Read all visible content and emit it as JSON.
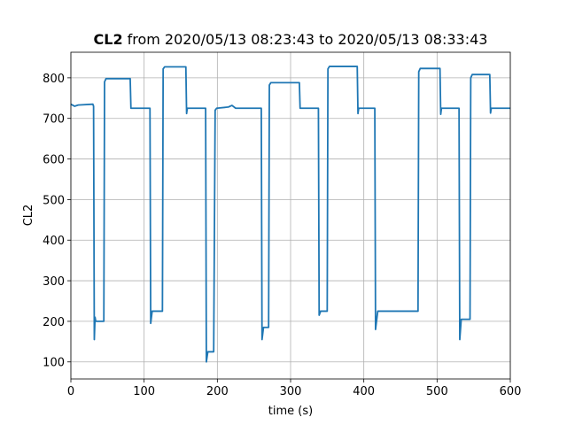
{
  "chart_data": {
    "type": "line",
    "title_bold": "CL2",
    "title": "from 2020/05/13 08:23:43 to 2020/05/13 08:33:43",
    "xlabel": "time (s)",
    "ylabel": "CL2",
    "x": [
      0,
      5,
      10,
      30,
      31,
      32,
      33,
      34,
      45,
      46,
      48,
      81,
      82,
      108,
      109,
      111,
      125,
      126,
      128,
      157,
      158,
      159,
      184,
      185,
      187,
      195,
      197,
      199,
      215,
      220,
      225,
      260,
      261,
      263,
      270,
      271,
      273,
      312,
      313,
      338,
      339,
      341,
      350,
      351,
      353,
      391,
      392,
      393,
      415,
      416,
      419,
      474,
      475,
      477,
      504,
      505,
      506,
      530,
      531,
      533,
      545,
      546,
      548,
      572,
      573,
      574,
      600
    ],
    "series": [
      {
        "name": "CL2",
        "color": "#1f77b4",
        "values": [
          735,
          730,
          733,
          735,
          730,
          155,
          210,
          200,
          200,
          790,
          798,
          798,
          725,
          725,
          195,
          225,
          225,
          822,
          827,
          827,
          712,
          725,
          725,
          100,
          125,
          125,
          720,
          725,
          728,
          732,
          725,
          725,
          155,
          185,
          185,
          782,
          788,
          788,
          725,
          725,
          215,
          225,
          225,
          822,
          828,
          828,
          712,
          725,
          725,
          180,
          225,
          225,
          815,
          823,
          823,
          710,
          725,
          725,
          155,
          205,
          205,
          800,
          808,
          808,
          713,
          725,
          725
        ]
      }
    ],
    "xlim": [
      0,
      600
    ],
    "ylim": [
      58,
      863
    ],
    "xticks": [
      0,
      100,
      200,
      300,
      400,
      500,
      600
    ],
    "yticks": [
      100,
      200,
      300,
      400,
      500,
      600,
      700,
      800
    ],
    "grid": true
  }
}
